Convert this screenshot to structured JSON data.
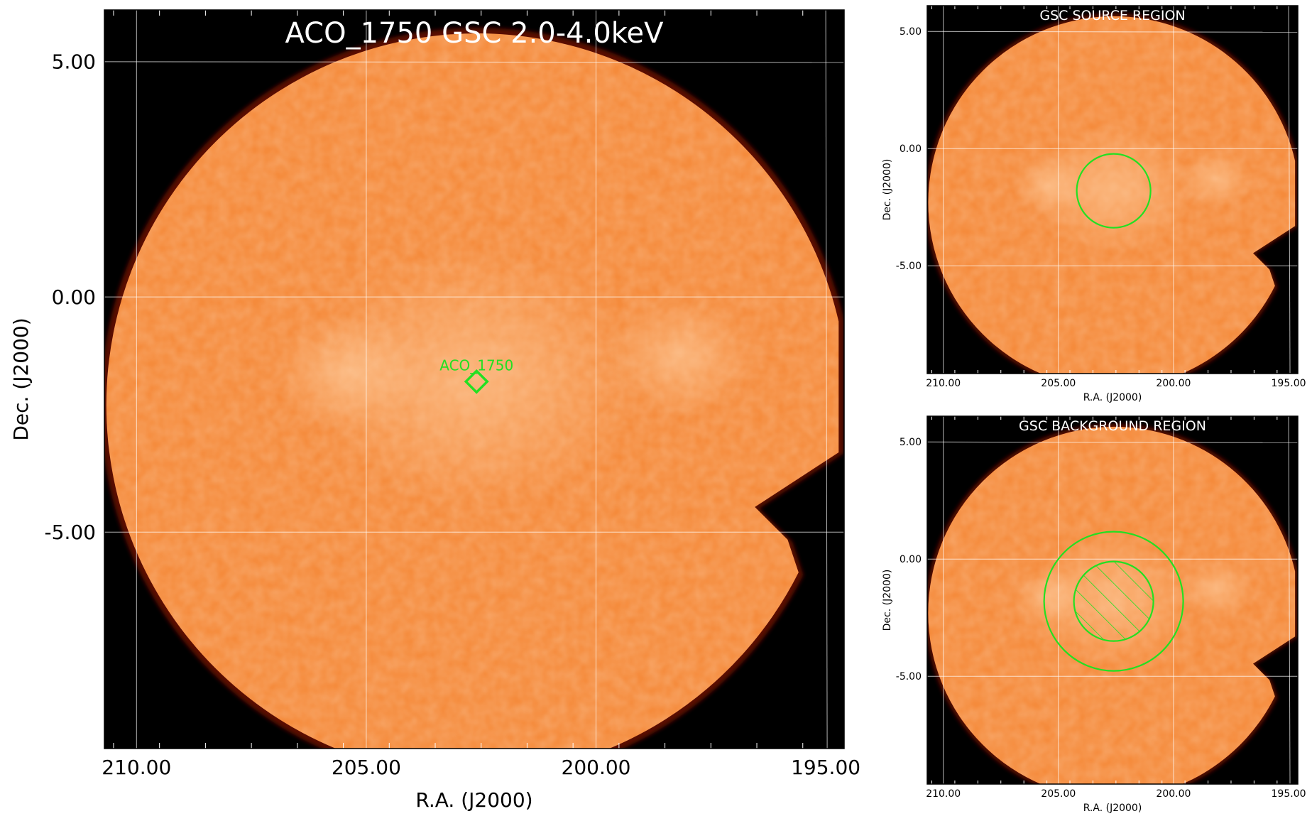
{
  "main_panel": {
    "title": "ACO_1750 GSC 2.0-4.0keV",
    "xlabel": "R.A. (J2000)",
    "ylabel": "Dec. (J2000)",
    "xticks": [
      "210.00",
      "205.00",
      "200.00",
      "195.00"
    ],
    "yticks": [
      "5.00",
      "0.00",
      "-5.00"
    ],
    "xlim": [
      210.7,
      194.6
    ],
    "ylim": [
      -9.6,
      6.1
    ],
    "source": {
      "label": "ACO_1750",
      "ra": 202.6,
      "dec": -1.8
    }
  },
  "source_panel": {
    "title": "GSC SOURCE REGION",
    "xlabel": "R.A. (J2000)",
    "ylabel": "Dec. (J2000)",
    "xticks": [
      "210.00",
      "205.00",
      "200.00",
      "195.00"
    ],
    "yticks": [
      "5.00",
      "0.00",
      "-5.00"
    ]
  },
  "background_panel": {
    "title": "GSC BACKGROUND REGION",
    "xlabel": "R.A. (J2000)",
    "ylabel": "Dec. (J2000)",
    "xticks": [
      "210.00",
      "205.00",
      "200.00",
      "195.00"
    ],
    "yticks": [
      "5.00",
      "0.00",
      "-5.00"
    ]
  },
  "colors": {
    "map": "#f58b3c",
    "map_edge": "#5a0a00",
    "background": "#000000",
    "region": "#22e022",
    "grid": "#ffffff"
  }
}
